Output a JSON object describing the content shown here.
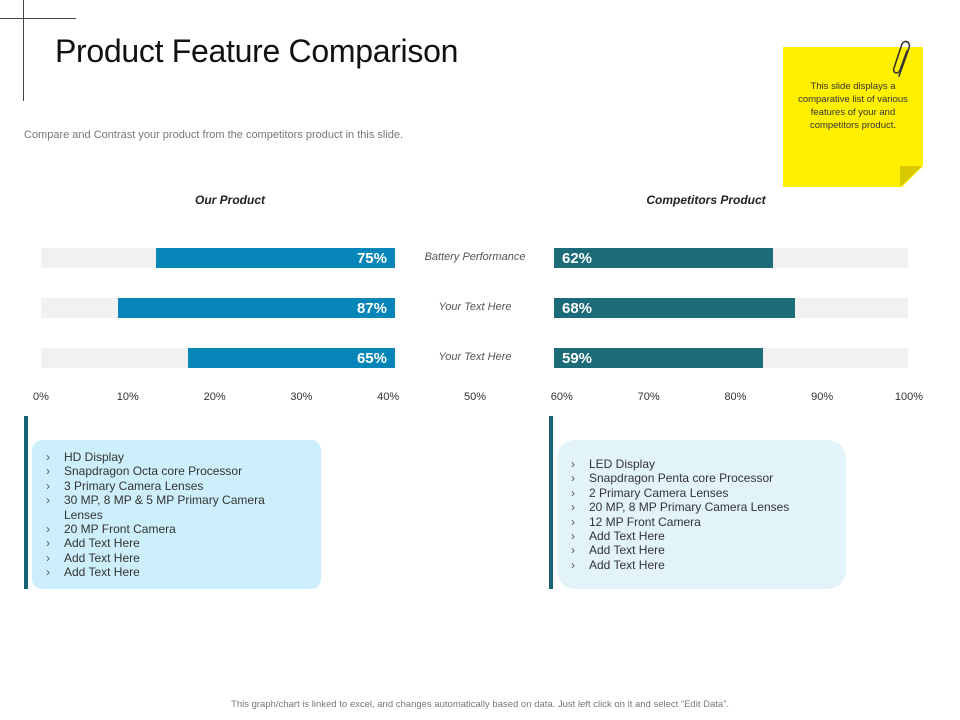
{
  "slide": {
    "title": "Product Feature Comparison",
    "subtitle": "Compare and Contrast your product from the competitors product in this slide.",
    "note": "This slide displays a comparative list of various features of your and competitors product.",
    "footer": "This graph/chart is linked to excel, and changes automatically based on data. Just left click on it and select “Edit Data”.",
    "icons": [
      "paperclip-icon",
      "chevron-right-icon"
    ],
    "colors": {
      "our_bar": "#0585b8",
      "competitor_bar": "#1b6b78",
      "note": "#ffef00"
    }
  },
  "chart_data": {
    "type": "bar",
    "orientation": "horizontal-butterfly",
    "categories": [
      "Battery Performance",
      "Your Text Here",
      "Your Text Here"
    ],
    "series": [
      {
        "name": "Our Product",
        "values": [
          75,
          87,
          65
        ],
        "labels": [
          "75%",
          "87%",
          "65%"
        ]
      },
      {
        "name": "Competitors  Product",
        "values": [
          62,
          68,
          59
        ],
        "labels": [
          "62%",
          "68%",
          "59%"
        ]
      }
    ],
    "axis_ticks": [
      "0%",
      "10%",
      "20%",
      "30%",
      "40%",
      "50%",
      "60%",
      "70%",
      "80%",
      "90%",
      "100%"
    ],
    "xlim": [
      0,
      100
    ]
  },
  "features": {
    "ours": [
      "HD Display",
      "Snapdragon Octa core Processor",
      "3 Primary Camera Lenses",
      "30 MP, 8 MP  & 5 MP Primary Camera Lenses",
      "20 MP Front Camera",
      "Add Text Here",
      "Add Text Here",
      "Add Text Here"
    ],
    "competitor": [
      "LED Display",
      "Snapdragon Penta core Processor",
      "2 Primary Camera Lenses",
      "20 MP, 8 MP  Primary Camera Lenses",
      "12 MP Front Camera",
      "Add Text Here",
      "Add Text Here",
      "Add Text Here"
    ]
  }
}
